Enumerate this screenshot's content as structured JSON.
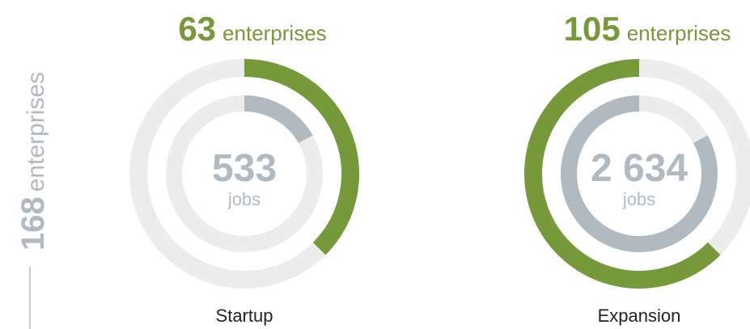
{
  "chart_data": {
    "type": "double-donut",
    "total": {
      "value": 168,
      "unit": "enterprises"
    },
    "jobs_unit": "jobs",
    "enterprise_color": "#76993a",
    "jobs_color": "#b1b9c1",
    "track_color": "#ececec",
    "series": [
      {
        "name": "Startup",
        "enterprises": 63,
        "jobs": 533,
        "jobs_label": "533",
        "direction": "clockwise"
      },
      {
        "name": "Expansion",
        "enterprises": 105,
        "jobs": 2634,
        "jobs_label": "2 634",
        "direction": "counterclockwise"
      }
    ]
  }
}
